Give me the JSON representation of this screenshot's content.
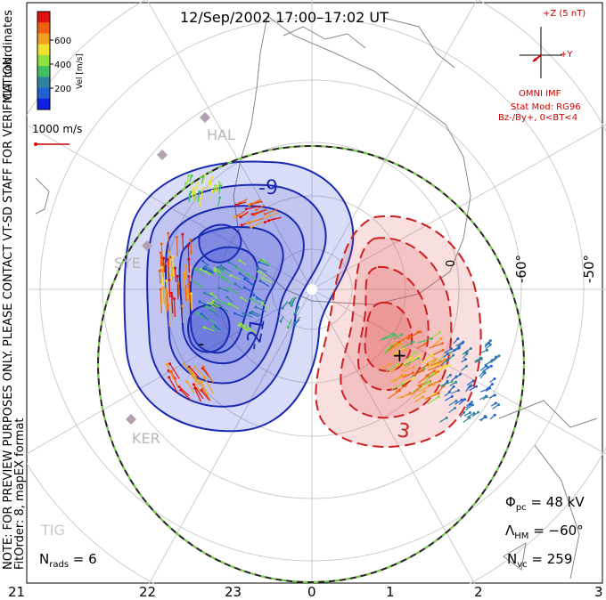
{
  "title": "12/Sep/2002 17:00–17:02 UT",
  "colorbar": {
    "label": "Vel [m/s]",
    "ticks": [
      "600",
      "400",
      "200"
    ],
    "colors": [
      "#e01010",
      "#f06010",
      "#f0a020",
      "#f0e030",
      "#90e040",
      "#40c060",
      "#3080a0",
      "#2060d0",
      "#1020e0"
    ]
  },
  "coordinates_label": "MLT coordinates",
  "scale_vector_label": "1000 m/s",
  "imf": {
    "top_label": "+Z (5 nT)",
    "right_label": "+Y",
    "source": "OMNI IMF",
    "model": "Stat Mod: RG96",
    "condition": "Bz-/By+, 0<BT<4"
  },
  "notes": {
    "preview": "NOTE: FOR PREVIEW PURPOSES ONLY. PLEASE CONTACT VT-SD STAFF FOR VERIFICATION.",
    "fit": "FitOrder: 8, mapEX format"
  },
  "stations": [
    "HAL",
    "SYE",
    "KER",
    "TIG"
  ],
  "latitude_labels": [
    "-60°",
    "-50°",
    "0"
  ],
  "contour_labels": [
    "-9",
    "-21",
    "-",
    "+",
    "3"
  ],
  "mlt_labels": [
    "21",
    "22",
    "23",
    "0",
    "1",
    "2",
    "3"
  ],
  "stats": {
    "phi_pc_symbol": "Φ",
    "phi_pc_sub": "pc",
    "phi_pc_value": " = 48 kV",
    "lambda_hm_symbol": "Λ",
    "lambda_hm_sub": "HM",
    "lambda_hm_value": " = −60°",
    "n_vc_symbol": "N",
    "n_vc_sub": "vc",
    "n_vc_value": " = 259",
    "n_rads_symbol": "N",
    "n_rads_sub": "rads",
    "n_rads_value": " = 6"
  },
  "colors": {
    "negative_cell": "#1a2ab0",
    "positive_cell": "#cc2020",
    "boundary": "#222222",
    "boundary_dash": "#7ad04a",
    "grid": "#cccccc",
    "land": "#888888",
    "annotation_red": "#cc0000"
  }
}
